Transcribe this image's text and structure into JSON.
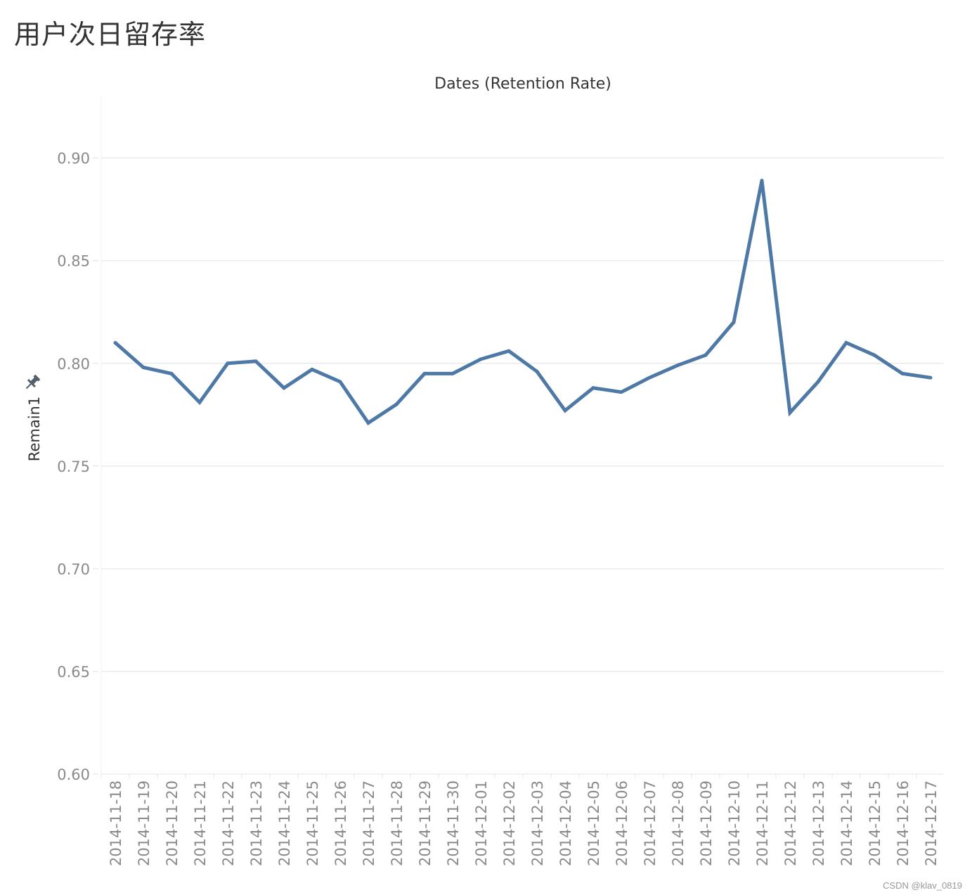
{
  "page": {
    "title": "用户次日留存率",
    "watermark": "CSDN @klav_0819"
  },
  "chart_data": {
    "type": "line",
    "title": "Dates (Retention Rate)",
    "xlabel": "",
    "ylabel": "Remain1",
    "ylim": [
      0.6,
      0.93
    ],
    "yticks": [
      0.6,
      0.65,
      0.7,
      0.75,
      0.8,
      0.85,
      0.9
    ],
    "grid": true,
    "pin_icon": "pin-icon",
    "line_color": "#4e79a7",
    "categories": [
      "2014-11-18",
      "2014-11-19",
      "2014-11-20",
      "2014-11-21",
      "2014-11-22",
      "2014-11-23",
      "2014-11-24",
      "2014-11-25",
      "2014-11-26",
      "2014-11-27",
      "2014-11-28",
      "2014-11-29",
      "2014-11-30",
      "2014-12-01",
      "2014-12-02",
      "2014-12-03",
      "2014-12-04",
      "2014-12-05",
      "2014-12-06",
      "2014-12-07",
      "2014-12-08",
      "2014-12-09",
      "2014-12-10",
      "2014-12-11",
      "2014-12-12",
      "2014-12-13",
      "2014-12-14",
      "2014-12-15",
      "2014-12-16",
      "2014-12-17"
    ],
    "series": [
      {
        "values": [
          0.81,
          0.798,
          0.795,
          0.781,
          0.8,
          0.801,
          0.788,
          0.797,
          0.791,
          0.771,
          0.78,
          0.795,
          0.795,
          0.802,
          0.806,
          0.796,
          0.777,
          0.788,
          0.786,
          0.793,
          0.799,
          0.804,
          0.82,
          0.889,
          0.776,
          0.791,
          0.81,
          0.804,
          0.795,
          0.793
        ]
      }
    ]
  }
}
